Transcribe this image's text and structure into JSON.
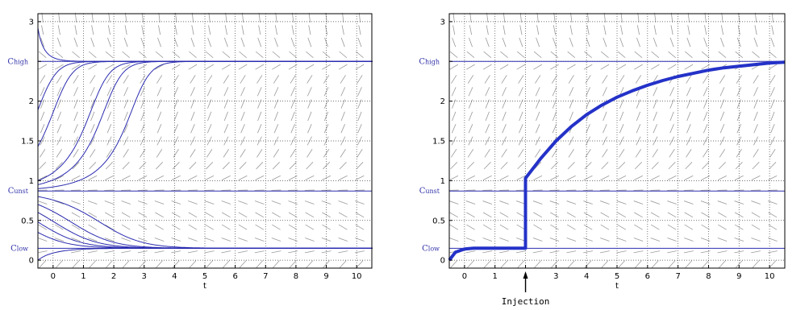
{
  "colors": {
    "curve": "#2b2bb0",
    "thick_curve": "#2432c8",
    "grid": "#444444",
    "field": "#9a9a9a",
    "label": "#3333aa"
  },
  "chart_data": [
    {
      "type": "line",
      "name": "left-panel",
      "xlim": [
        -0.5,
        10.5
      ],
      "ylim": [
        -0.1,
        3.1
      ],
      "xticks": [
        0,
        1,
        2,
        3,
        4,
        5,
        6,
        7,
        8,
        9,
        10
      ],
      "yticks": [
        0,
        0.5,
        1,
        1.5,
        2,
        2.5,
        3
      ],
      "xtick_labels": [
        "0",
        "1",
        "2",
        "3",
        "4",
        "5",
        "6",
        "7",
        "8",
        "9",
        "10"
      ],
      "ytick_labels": [
        "0",
        "0.5",
        "1",
        "1.5",
        "2",
        "",
        "3"
      ],
      "xlabel": "t",
      "grid": true,
      "level_lines": [
        {
          "label": "Chigh",
          "y": 2.5
        },
        {
          "label": "Cunst",
          "y": 0.87
        },
        {
          "label": "Clow",
          "y": 0.15
        }
      ],
      "trajectories_y0": [
        2.92,
        1.89,
        1.43,
        1.0,
        0.95,
        0.9,
        0.8,
        0.7,
        0.6,
        0.48,
        0.35,
        0.0
      ]
    },
    {
      "type": "line",
      "name": "right-panel",
      "xlim": [
        -0.5,
        10.5
      ],
      "ylim": [
        -0.1,
        3.1
      ],
      "xticks": [
        0,
        1,
        2,
        3,
        4,
        5,
        6,
        7,
        8,
        9,
        10
      ],
      "yticks": [
        0,
        0.5,
        1,
        1.5,
        2,
        2.5,
        3
      ],
      "xtick_labels": [
        "0",
        "1",
        "",
        "3",
        "4",
        "5",
        "6",
        "7",
        "8",
        "9",
        "10"
      ],
      "ytick_labels": [
        "0",
        "0.5",
        "1",
        "1.5",
        "2",
        "",
        "3"
      ],
      "xlabel": "t",
      "grid": true,
      "level_lines": [
        {
          "label": "Chigh",
          "y": 2.5
        },
        {
          "label": "Cunst",
          "y": 0.87
        },
        {
          "label": "Clow",
          "y": 0.15
        }
      ],
      "injection": {
        "t": 2,
        "label": "Injection",
        "jump_to": 1.03
      },
      "series": [
        {
          "x": [
            -0.5,
            -0.3,
            0,
            0.3,
            0.6,
            1,
            1.5,
            2,
            2,
            2.5,
            3,
            3.5,
            4,
            4.5,
            5,
            5.5,
            6,
            6.5,
            7,
            7.5,
            8,
            8.5,
            9,
            9.5,
            10,
            10.5
          ],
          "y": [
            0.0,
            0.1,
            0.14,
            0.15,
            0.15,
            0.15,
            0.15,
            0.15,
            1.03,
            1.28,
            1.5,
            1.68,
            1.83,
            1.95,
            2.05,
            2.13,
            2.2,
            2.26,
            2.31,
            2.35,
            2.39,
            2.42,
            2.44,
            2.46,
            2.48,
            2.49
          ]
        }
      ]
    }
  ]
}
